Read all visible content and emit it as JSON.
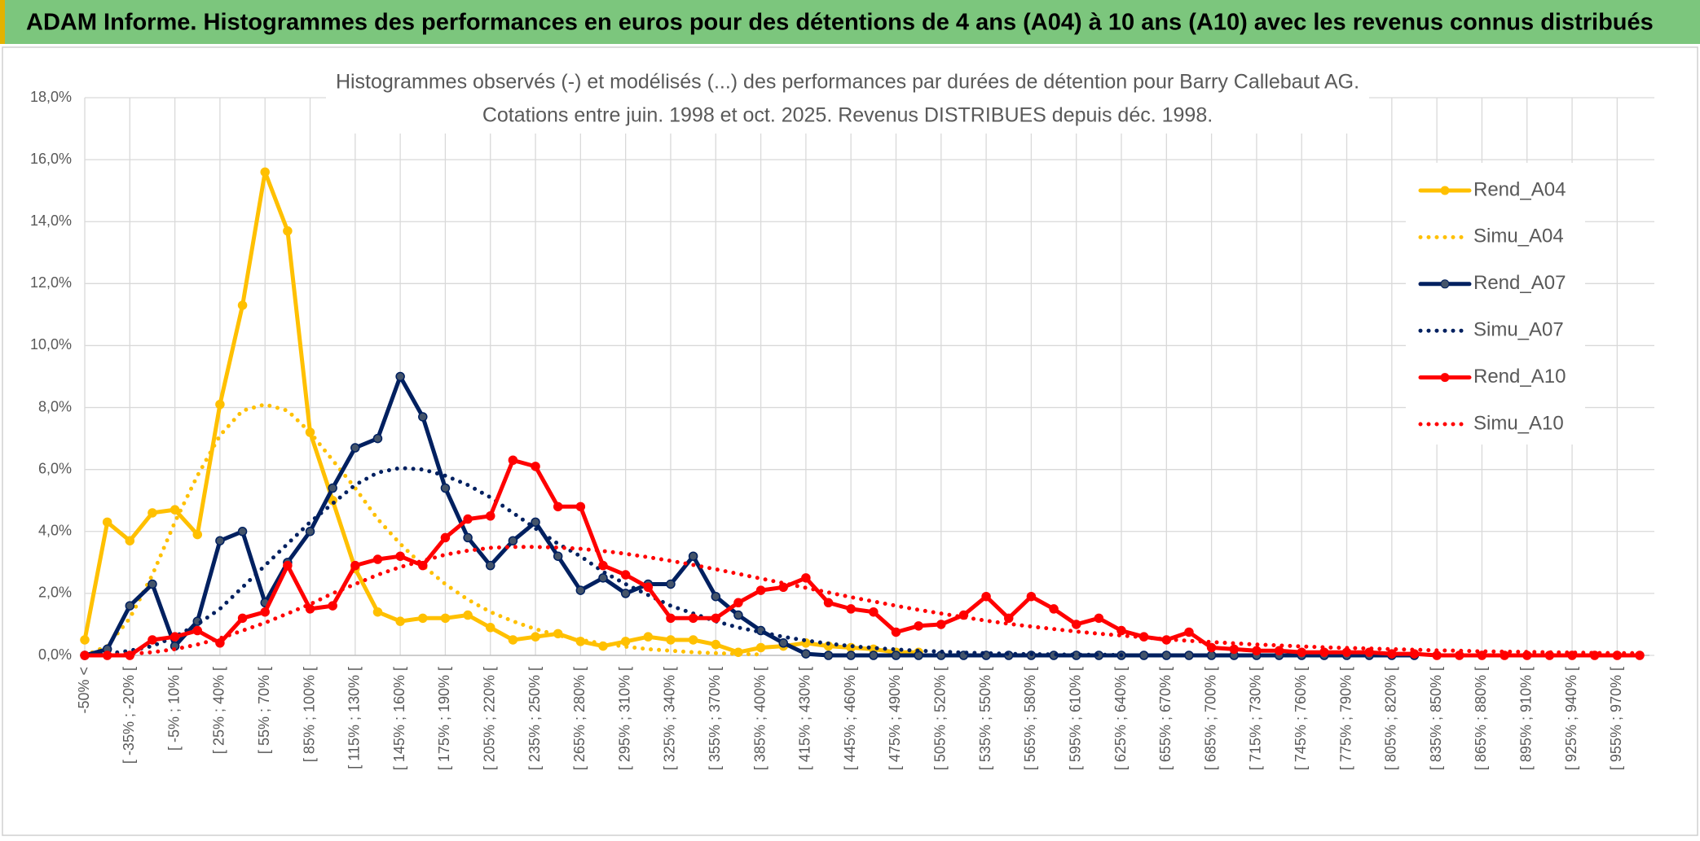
{
  "page_title": "ADAM Informe. Histogrammes des performances en euros pour des détentions de 4 ans (A04) à 10 ans (A10) avec les revenus connus distribués",
  "chart_data": {
    "type": "line",
    "title": "Histogrammes observés (-) et modélisés (...) des performances par durées de détention pour Barry Callebaut AG.",
    "subtitle": "Cotations entre juin. 1998 et oct. 2025. Revenus DISTRIBUES depuis déc. 1998.",
    "categories": [
      "-50% <",
      null,
      "[ -35% ; -20% [",
      null,
      "[ -5% ; 10% [",
      null,
      "[ 25% ; 40% [",
      null,
      "[ 55% ; 70% [",
      null,
      "[ 85% ; 100% [",
      null,
      "[ 115% ; 130% [",
      null,
      "[ 145% ; 160% [",
      null,
      "[ 175% ; 190% [",
      null,
      "[ 205% ; 220% [",
      null,
      "[ 235% ; 250% [",
      null,
      "[ 265% ; 280% [",
      null,
      "[ 295% ; 310% [",
      null,
      "[ 325% ; 340% [",
      null,
      "[ 355% ; 370% [",
      null,
      "[ 385% ; 400% [",
      null,
      "[ 415% ; 430% [",
      null,
      "[ 445% ; 460% [",
      null,
      "[ 475% ; 490% [",
      null,
      "[ 505% ; 520% [",
      null,
      "[ 535% ; 550% [",
      null,
      "[ 565% ; 580% [",
      null,
      "[ 595% ; 610% [",
      null,
      "[ 625% ; 640% [",
      null,
      "[ 655% ; 670% [",
      null,
      "[ 685% ; 700% [",
      null,
      "[ 715% ; 730% [",
      null,
      "[ 745% ; 760% [",
      null,
      "[ 775% ; 790% [",
      null,
      "[ 805% ; 820% [",
      null,
      "[ 835% ; 850% [",
      null,
      "[ 865% ; 880% [",
      null,
      "[ 895% ; 910% [",
      null,
      "[ 925% ; 940% [",
      null,
      "[ 955% ; 970% [",
      null
    ],
    "series": [
      {
        "name": "Rend_A04",
        "color": "#FFC000",
        "style": "solid",
        "markers": true,
        "values": [
          0.5,
          4.3,
          3.7,
          4.6,
          4.7,
          3.9,
          8.1,
          11.3,
          15.6,
          13.7,
          7.2,
          5.0,
          2.8,
          1.4,
          1.1,
          1.2,
          1.2,
          1.3,
          0.9,
          0.5,
          0.6,
          0.7,
          0.45,
          0.3,
          0.45,
          0.6,
          0.5,
          0.5,
          0.35,
          0.1,
          0.25,
          0.3,
          0.4,
          0.3,
          0.25,
          0.2,
          0.1,
          0.1,
          null,
          null,
          null,
          null,
          null,
          null,
          null,
          null,
          null,
          null,
          null,
          null,
          null,
          null,
          null,
          null,
          null,
          null,
          null,
          null,
          null,
          null,
          null,
          null,
          null,
          null,
          null,
          null,
          null,
          null,
          null,
          null
        ]
      },
      {
        "name": "Simu_A04",
        "color": "#FFC000",
        "style": "dotted",
        "markers": false,
        "values": [
          0,
          0.3,
          1.2,
          2.6,
          4.3,
          5.8,
          7.1,
          7.9,
          8.1,
          7.9,
          7.2,
          6.3,
          5.4,
          4.4,
          3.6,
          2.9,
          2.3,
          1.8,
          1.4,
          1.1,
          0.85,
          0.65,
          0.5,
          0.38,
          0.28,
          0.2,
          0.15,
          0.1,
          0.07,
          0.05,
          0.03,
          null,
          null,
          null,
          null,
          null,
          null,
          null,
          null,
          null,
          null,
          null,
          null,
          null,
          null,
          null,
          null,
          null,
          null,
          null,
          null,
          null,
          null,
          null,
          null,
          null,
          null,
          null,
          null,
          null,
          null,
          null,
          null,
          null,
          null,
          null,
          null,
          null,
          null,
          null
        ]
      },
      {
        "name": "Rend_A07",
        "color": "#002060",
        "style": "solid",
        "markers": true,
        "values": [
          0,
          0.2,
          1.6,
          2.3,
          0.3,
          1.1,
          3.7,
          4.0,
          1.7,
          3.0,
          4.0,
          5.4,
          6.7,
          7.0,
          9.0,
          7.7,
          5.4,
          3.8,
          2.9,
          3.7,
          4.3,
          3.2,
          2.1,
          2.5,
          2.0,
          2.3,
          2.3,
          3.2,
          1.9,
          1.3,
          0.8,
          0.4,
          0.05,
          0,
          0,
          0,
          0,
          0,
          0,
          0,
          0,
          0,
          0,
          0,
          0,
          0,
          0,
          0,
          0,
          0,
          0,
          0,
          0,
          0,
          0,
          0,
          0,
          0,
          0,
          0,
          null,
          null,
          null,
          null,
          null,
          null,
          null,
          null,
          null,
          null
        ]
      },
      {
        "name": "Simu_A07",
        "color": "#002060",
        "style": "dotted",
        "markers": false,
        "values": [
          0,
          0.05,
          0.15,
          0.3,
          0.6,
          1.0,
          1.5,
          2.2,
          2.9,
          3.6,
          4.3,
          4.9,
          5.5,
          5.9,
          6.05,
          6.0,
          5.8,
          5.5,
          5.1,
          4.6,
          4.1,
          3.6,
          3.2,
          2.7,
          2.3,
          1.95,
          1.6,
          1.35,
          1.1,
          0.9,
          0.75,
          0.6,
          0.48,
          0.38,
          0.3,
          0.24,
          0.19,
          0.15,
          0.12,
          0.09,
          0.07,
          0.05,
          0.04,
          0.03,
          0.02,
          0.02,
          0.01,
          null,
          null,
          null,
          null,
          null,
          null,
          null,
          null,
          null,
          null,
          null,
          null,
          null,
          null,
          null,
          null,
          null,
          null,
          null,
          null,
          null,
          null,
          null
        ]
      },
      {
        "name": "Rend_A10",
        "color": "#FF0000",
        "style": "solid",
        "markers": true,
        "values": [
          0,
          0,
          0,
          0.5,
          0.6,
          0.8,
          0.4,
          1.2,
          1.4,
          2.9,
          1.5,
          1.6,
          2.9,
          3.1,
          3.2,
          2.9,
          3.8,
          4.4,
          4.5,
          6.3,
          6.1,
          4.8,
          4.8,
          2.9,
          2.6,
          2.2,
          1.2,
          1.2,
          1.2,
          1.7,
          2.1,
          2.2,
          2.5,
          1.7,
          1.5,
          1.4,
          0.75,
          0.95,
          1.0,
          1.3,
          1.9,
          1.2,
          1.9,
          1.5,
          1.0,
          1.2,
          0.8,
          0.6,
          0.5,
          0.75,
          0.25,
          0.2,
          0.15,
          0.15,
          0.1,
          0.1,
          0.1,
          0.1,
          0.05,
          0.05,
          0,
          0,
          0,
          0,
          0,
          0,
          0,
          0,
          0,
          0
        ]
      },
      {
        "name": "Simu_A10",
        "color": "#FF0000",
        "style": "dotted",
        "markers": false,
        "values": [
          0,
          0,
          0.05,
          0.1,
          0.2,
          0.35,
          0.55,
          0.8,
          1.05,
          1.35,
          1.65,
          2.0,
          2.3,
          2.6,
          2.85,
          3.05,
          3.25,
          3.38,
          3.47,
          3.5,
          3.5,
          3.48,
          3.44,
          3.37,
          3.28,
          3.17,
          3.05,
          2.92,
          2.78,
          2.63,
          2.48,
          2.33,
          2.18,
          2.03,
          1.88,
          1.74,
          1.6,
          1.47,
          1.35,
          1.23,
          1.12,
          1.02,
          0.93,
          0.85,
          0.77,
          0.7,
          0.64,
          0.58,
          0.52,
          0.47,
          0.43,
          0.39,
          0.35,
          0.32,
          0.29,
          0.26,
          0.24,
          0.22,
          0.2,
          0.18,
          0.16,
          0.15,
          0.13,
          0.12,
          0.11,
          0.1,
          0.09,
          0.08,
          0.07,
          0.07
        ]
      }
    ],
    "ylim": [
      0,
      18
    ],
    "yticks": [
      {
        "value": 0,
        "label": "0,0%"
      },
      {
        "value": 2,
        "label": "2,0%"
      },
      {
        "value": 4,
        "label": "4,0%"
      },
      {
        "value": 6,
        "label": "6,0%"
      },
      {
        "value": 8,
        "label": "8,0%"
      },
      {
        "value": 10,
        "label": "10,0%"
      },
      {
        "value": 12,
        "label": "12,0%"
      },
      {
        "value": 14,
        "label": "14,0%"
      },
      {
        "value": 16,
        "label": "16,0%"
      },
      {
        "value": 18,
        "label": "18,0%"
      }
    ],
    "grid": true,
    "legend": "right"
  }
}
